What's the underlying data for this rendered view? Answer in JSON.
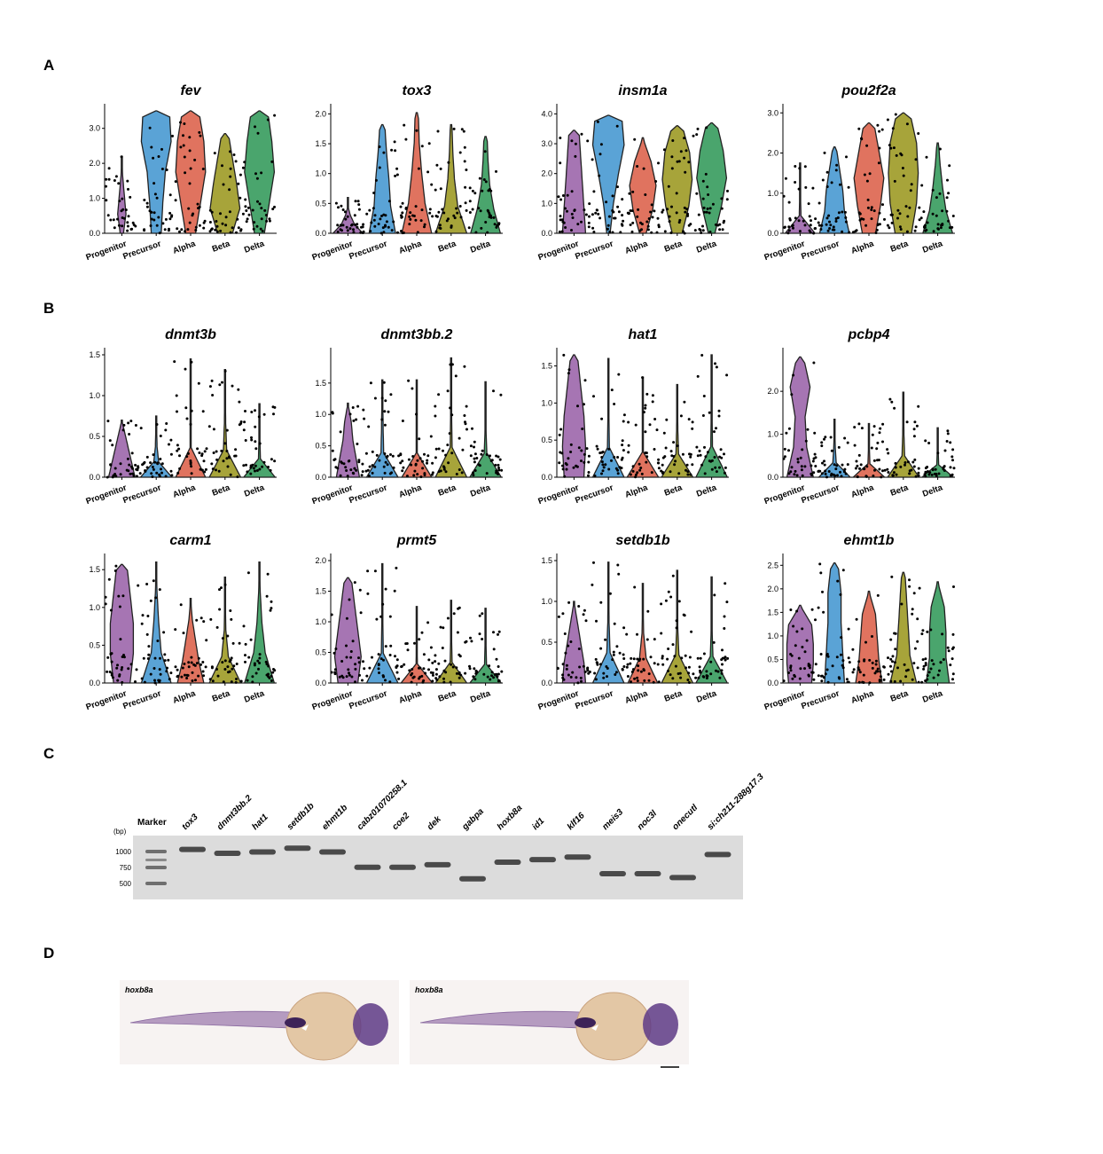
{
  "panels": {
    "A": "A",
    "B": "B",
    "C": "C",
    "D": "D"
  },
  "categories": [
    "Progenitor",
    "Precursor",
    "Alpha",
    "Beta",
    "Delta"
  ],
  "colors": {
    "Progenitor": "#a675b3",
    "Precursor": "#5aa3d6",
    "Alpha": "#e0735f",
    "Beta": "#a7a43a",
    "Delta": "#4aa56d"
  },
  "violin_plots": [
    {
      "gene": "fev",
      "yticks": [
        "0.0",
        "1.0",
        "2.0",
        "3.0"
      ],
      "tick_values": [
        0,
        1,
        2,
        3
      ],
      "ymax": 3.5,
      "widths": [
        [
          0.1,
          0.25,
          0.15,
          0.05,
          0.0
        ],
        [
          0.3,
          0.4,
          0.55,
          0.9,
          0.8
        ],
        [
          0.3,
          0.6,
          0.9,
          0.8,
          0.5
        ],
        [
          0.45,
          0.9,
          0.7,
          0.45,
          0.2
        ],
        [
          0.3,
          0.6,
          0.9,
          0.75,
          0.5
        ]
      ],
      "maxv": [
        2.2,
        3.5,
        3.5,
        2.85,
        3.5
      ]
    },
    {
      "gene": "tox3",
      "yticks": [
        "0.0",
        "0.5",
        "1.0",
        "1.5",
        "2.0"
      ],
      "tick_values": [
        0,
        0.5,
        1,
        1.5,
        2
      ],
      "ymax": 2.05,
      "widths": [
        [
          0.9,
          0.4,
          0.15,
          0.0,
          0.0
        ],
        [
          0.8,
          0.5,
          0.4,
          0.25,
          0.15
        ],
        [
          0.9,
          0.5,
          0.3,
          0.15,
          0.1
        ],
        [
          0.95,
          0.4,
          0.2,
          0.1,
          0.05
        ],
        [
          0.9,
          0.5,
          0.25,
          0.15,
          0.1
        ]
      ],
      "maxv": [
        0.6,
        1.82,
        2.02,
        1.82,
        1.62
      ]
    },
    {
      "gene": "insm1a",
      "yticks": [
        "0.0",
        "1.0",
        "2.0",
        "3.0",
        "4.0"
      ],
      "tick_values": [
        0,
        1,
        2,
        3,
        4
      ],
      "ymax": 4.1,
      "widths": [
        [
          0.7,
          0.6,
          0.5,
          0.4,
          0.3
        ],
        [
          0.1,
          0.3,
          0.6,
          0.95,
          0.8
        ],
        [
          0.2,
          0.6,
          0.8,
          0.5,
          0.0
        ],
        [
          0.3,
          0.7,
          0.9,
          0.75,
          0.3
        ],
        [
          0.2,
          0.6,
          0.9,
          0.7,
          0.3
        ]
      ],
      "maxv": [
        3.45,
        3.95,
        3.2,
        3.6,
        3.7
      ]
    },
    {
      "gene": "pou2f2a",
      "yticks": [
        "0.0",
        "1.0",
        "2.0",
        "3.0"
      ],
      "tick_values": [
        0,
        1,
        2,
        3
      ],
      "ymax": 3.05,
      "widths": [
        [
          0.9,
          0.05,
          0.03,
          0.02,
          0.0
        ],
        [
          0.9,
          0.6,
          0.5,
          0.3,
          0.1
        ],
        [
          0.4,
          0.7,
          0.9,
          0.6,
          0.3
        ],
        [
          0.5,
          0.8,
          0.9,
          0.8,
          0.4
        ],
        [
          0.9,
          0.5,
          0.3,
          0.15,
          0.05
        ]
      ],
      "maxv": [
        1.75,
        2.15,
        2.75,
        3.0,
        2.25
      ]
    },
    {
      "gene": "dnmt3b",
      "yticks": [
        "0.0",
        "0.5",
        "1.0",
        "1.5"
      ],
      "tick_values": [
        0,
        0.5,
        1,
        1.5
      ],
      "ymax": 1.5,
      "widths": [
        [
          0.8,
          0.6,
          0.4,
          0.2,
          0.0
        ],
        [
          0.95,
          0.15,
          0.05,
          0.03,
          0.0
        ],
        [
          0.9,
          0.03,
          0.02,
          0.02,
          0.01
        ],
        [
          0.95,
          0.1,
          0.04,
          0.02,
          0.01
        ],
        [
          0.95,
          0.06,
          0.03,
          0.02,
          0.01
        ]
      ],
      "maxv": [
        0.7,
        0.75,
        1.45,
        1.32,
        0.9
      ]
    },
    {
      "gene": "dnmt3bb.2",
      "yticks": [
        "0.0",
        "0.5",
        "1.0",
        "1.5"
      ],
      "tick_values": [
        0,
        0.5,
        1,
        1.5
      ],
      "ymax": 1.95,
      "widths": [
        [
          0.7,
          0.5,
          0.3,
          0.2,
          0.0
        ],
        [
          0.95,
          0.08,
          0.05,
          0.03,
          0.0
        ],
        [
          0.9,
          0.02,
          0.02,
          0.01,
          0.0
        ],
        [
          0.95,
          0.06,
          0.03,
          0.02,
          0.01
        ],
        [
          0.95,
          0.08,
          0.03,
          0.02,
          0.01
        ]
      ],
      "maxv": [
        1.18,
        1.55,
        1.55,
        1.9,
        1.52
      ]
    },
    {
      "gene": "hat1",
      "yticks": [
        "0.0",
        "0.5",
        "1.0",
        "1.5"
      ],
      "tick_values": [
        0,
        0.5,
        1,
        1.5
      ],
      "ymax": 1.65,
      "widths": [
        [
          0.6,
          0.7,
          0.6,
          0.4,
          0.2
        ],
        [
          0.95,
          0.06,
          0.03,
          0.02,
          0.0
        ],
        [
          0.95,
          0.03,
          0.02,
          0.01,
          0.0
        ],
        [
          0.95,
          0.08,
          0.04,
          0.02,
          0.0
        ],
        [
          0.95,
          0.05,
          0.03,
          0.02,
          0.0
        ]
      ],
      "maxv": [
        1.65,
        1.6,
        1.35,
        1.25,
        1.65
      ]
    },
    {
      "gene": "pcbp4",
      "yticks": [
        "0.0",
        "1.0",
        "2.0"
      ],
      "tick_values": [
        0,
        1,
        2
      ],
      "ymax": 2.85,
      "widths": [
        [
          0.8,
          0.4,
          0.3,
          0.6,
          0.2
        ],
        [
          0.95,
          0.1,
          0.05,
          0.02,
          0.0
        ],
        [
          0.95,
          0.06,
          0.03,
          0.02,
          0.0
        ],
        [
          0.95,
          0.08,
          0.04,
          0.02,
          0.0
        ],
        [
          0.95,
          0.06,
          0.03,
          0.02,
          0.0
        ]
      ],
      "maxv": [
        2.8,
        1.35,
        1.25,
        1.98,
        1.15
      ]
    },
    {
      "gene": "carm1",
      "yticks": [
        "0.0",
        "0.5",
        "1.0",
        "1.5"
      ],
      "tick_values": [
        0,
        0.5,
        1,
        1.5
      ],
      "ymax": 1.62,
      "widths": [
        [
          0.5,
          0.7,
          0.7,
          0.5,
          0.3
        ],
        [
          0.9,
          0.3,
          0.15,
          0.05,
          0.0
        ],
        [
          0.8,
          0.5,
          0.3,
          0.1,
          0.0
        ],
        [
          0.95,
          0.2,
          0.05,
          0.02,
          0.0
        ],
        [
          0.9,
          0.35,
          0.15,
          0.05,
          0.0
        ]
      ],
      "maxv": [
        1.57,
        1.6,
        1.12,
        1.4,
        1.6
      ]
    },
    {
      "gene": "prmt5",
      "yticks": [
        "0.0",
        "0.5",
        "1.0",
        "1.5",
        "2.0"
      ],
      "tick_values": [
        0,
        0.5,
        1,
        1.5,
        2
      ],
      "ymax": 2.0,
      "widths": [
        [
          0.6,
          0.8,
          0.6,
          0.4,
          0.2
        ],
        [
          0.95,
          0.06,
          0.03,
          0.02,
          0.0
        ],
        [
          0.95,
          0.04,
          0.02,
          0.01,
          0.0
        ],
        [
          0.95,
          0.06,
          0.03,
          0.02,
          0.0
        ],
        [
          0.95,
          0.06,
          0.03,
          0.02,
          0.0
        ]
      ],
      "maxv": [
        1.72,
        1.95,
        1.25,
        1.35,
        1.22
      ]
    },
    {
      "gene": "setdb1b",
      "yticks": [
        "0.0",
        "0.5",
        "1.0",
        "1.5"
      ],
      "tick_values": [
        0,
        0.5,
        1,
        1.5
      ],
      "ymax": 1.5,
      "widths": [
        [
          0.7,
          0.6,
          0.4,
          0.2,
          0.0
        ],
        [
          0.95,
          0.1,
          0.04,
          0.02,
          0.0
        ],
        [
          0.9,
          0.2,
          0.05,
          0.02,
          0.0
        ],
        [
          0.95,
          0.1,
          0.03,
          0.02,
          0.0
        ],
        [
          0.95,
          0.08,
          0.03,
          0.02,
          0.0
        ]
      ],
      "maxv": [
        1.0,
        1.48,
        1.22,
        1.38,
        1.3
      ]
    },
    {
      "gene": "ehmt1b",
      "yticks": [
        "0.0",
        "0.5",
        "1.0",
        "1.5",
        "2.0",
        "2.5"
      ],
      "tick_values": [
        0,
        0.5,
        1,
        1.5,
        2,
        2.5
      ],
      "ymax": 2.6,
      "widths": [
        [
          0.7,
          0.8,
          0.8,
          0.7,
          0.0
        ],
        [
          0.6,
          0.5,
          0.4,
          0.4,
          0.2
        ],
        [
          0.8,
          0.6,
          0.5,
          0.4,
          0.0
        ],
        [
          0.8,
          0.4,
          0.3,
          0.2,
          0.1
        ],
        [
          0.7,
          0.5,
          0.5,
          0.4,
          0.0
        ]
      ],
      "maxv": [
        1.65,
        2.55,
        1.95,
        2.35,
        2.15
      ]
    }
  ],
  "gel": {
    "marker_label": "Marker",
    "bp_label": "(bp)",
    "marker_sizes": [
      "1000",
      "750",
      "500"
    ],
    "lanes": [
      {
        "name": "tox3",
        "band": 0.88
      },
      {
        "name": "dnmt3bb.2",
        "band": 0.82
      },
      {
        "name": "hat1",
        "band": 0.84
      },
      {
        "name": "setdb1b",
        "band": 0.9
      },
      {
        "name": "ehmt1b",
        "band": 0.84
      },
      {
        "name": "cabz01070258.1",
        "band": 0.6
      },
      {
        "name": "coe2",
        "band": 0.6
      },
      {
        "name": "dek",
        "band": 0.64
      },
      {
        "name": "gabpa",
        "band": 0.42
      },
      {
        "name": "hoxb8a",
        "band": 0.68
      },
      {
        "name": "id1",
        "band": 0.72
      },
      {
        "name": "klf16",
        "band": 0.76
      },
      {
        "name": "meis3",
        "band": 0.5
      },
      {
        "name": "noc3l",
        "band": 0.5
      },
      {
        "name": "onecutl",
        "band": 0.44
      },
      {
        "name": "si:ch211-288g17.3",
        "band": 0.8
      }
    ]
  },
  "in_situ": {
    "images": [
      {
        "label": "hoxb8a"
      },
      {
        "label": "hoxb8a"
      }
    ]
  }
}
